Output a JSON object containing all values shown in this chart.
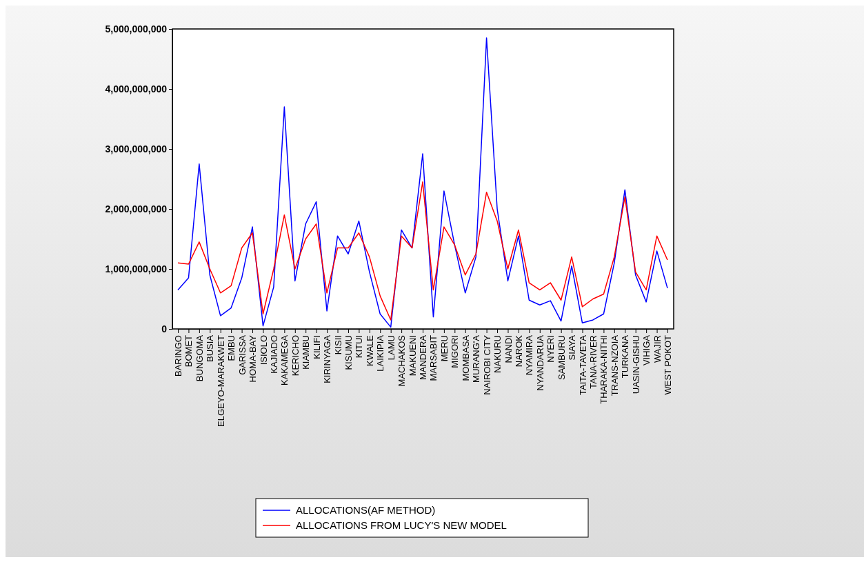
{
  "chart_data": {
    "type": "line",
    "categories": [
      "BARINGO",
      "BOMET",
      "BUNGOMA",
      "BUSIA",
      "ELGEYO-MARAKWET",
      "EMBU",
      "GARISSA",
      "HOMA-BAY",
      "ISIOLO",
      "KAJIADO",
      "KAKAMEGA",
      "KERICHO",
      "KIAMBU",
      "KILIFI",
      "KIRINYAGA",
      "KISII",
      "KISUMU",
      "KITUI",
      "KWALE",
      "LAIKIPIA",
      "LAMU",
      "MACHAKOS",
      "MAKUENI",
      "MANDERA",
      "MARSABIT",
      "MERU",
      "MIGORI",
      "MOMBASA",
      "MURANG'A",
      "NAIROBI CITY",
      "NAKURU",
      "NANDI",
      "NAROK",
      "NYAMIRA",
      "NYANDARUA",
      "NYERI",
      "SAMBURU",
      "SIAYA",
      "TAITA-TAVETA",
      "TANA-RIVER",
      "THARAKA-NITHI",
      "TRANS-NZOIA",
      "TURKANA",
      "UASIN-GISHU",
      "VIHIGA",
      "WAJIR",
      "WEST POKOT"
    ],
    "series": [
      {
        "name": "ALLOCATIONS(AF METHOD)",
        "color": "#0000ff",
        "values": [
          650000000,
          850000000,
          2750000000,
          900000000,
          220000000,
          350000000,
          850000000,
          1700000000,
          50000000,
          700000000,
          3700000000,
          800000000,
          1750000000,
          2120000000,
          300000000,
          1550000000,
          1250000000,
          1800000000,
          950000000,
          250000000,
          30000000,
          1650000000,
          1350000000,
          2920000000,
          200000000,
          2300000000,
          1400000000,
          600000000,
          1200000000,
          4850000000,
          2000000000,
          800000000,
          1550000000,
          480000000,
          400000000,
          470000000,
          130000000,
          1050000000,
          100000000,
          150000000,
          250000000,
          1100000000,
          2320000000,
          900000000,
          450000000,
          1300000000,
          680000000
        ]
      },
      {
        "name": "ALLOCATIONS FROM LUCY'S NEW MODEL",
        "color": "#ff0000",
        "values": [
          1100000000,
          1080000000,
          1450000000,
          1000000000,
          600000000,
          720000000,
          1350000000,
          1600000000,
          250000000,
          1000000000,
          1900000000,
          1000000000,
          1500000000,
          1750000000,
          600000000,
          1350000000,
          1350000000,
          1600000000,
          1200000000,
          550000000,
          150000000,
          1550000000,
          1350000000,
          2450000000,
          650000000,
          1700000000,
          1400000000,
          900000000,
          1250000000,
          2280000000,
          1800000000,
          1000000000,
          1650000000,
          770000000,
          650000000,
          770000000,
          480000000,
          1200000000,
          370000000,
          500000000,
          580000000,
          1200000000,
          2200000000,
          950000000,
          650000000,
          1550000000,
          1150000000
        ]
      }
    ],
    "ylim": [
      0,
      5000000000
    ],
    "yticks": [
      {
        "value": 0,
        "label": "0"
      },
      {
        "value": 1000000000,
        "label": "1,000,000,000"
      },
      {
        "value": 2000000000,
        "label": "2,000,000,000"
      },
      {
        "value": 3000000000,
        "label": "3,000,000,000"
      },
      {
        "value": 4000000000,
        "label": "4,000,000,000"
      },
      {
        "value": 5000000000,
        "label": "5,000,000,000"
      }
    ],
    "legend": "bottom",
    "grid": false,
    "marker": "none",
    "line_style": "solid"
  }
}
